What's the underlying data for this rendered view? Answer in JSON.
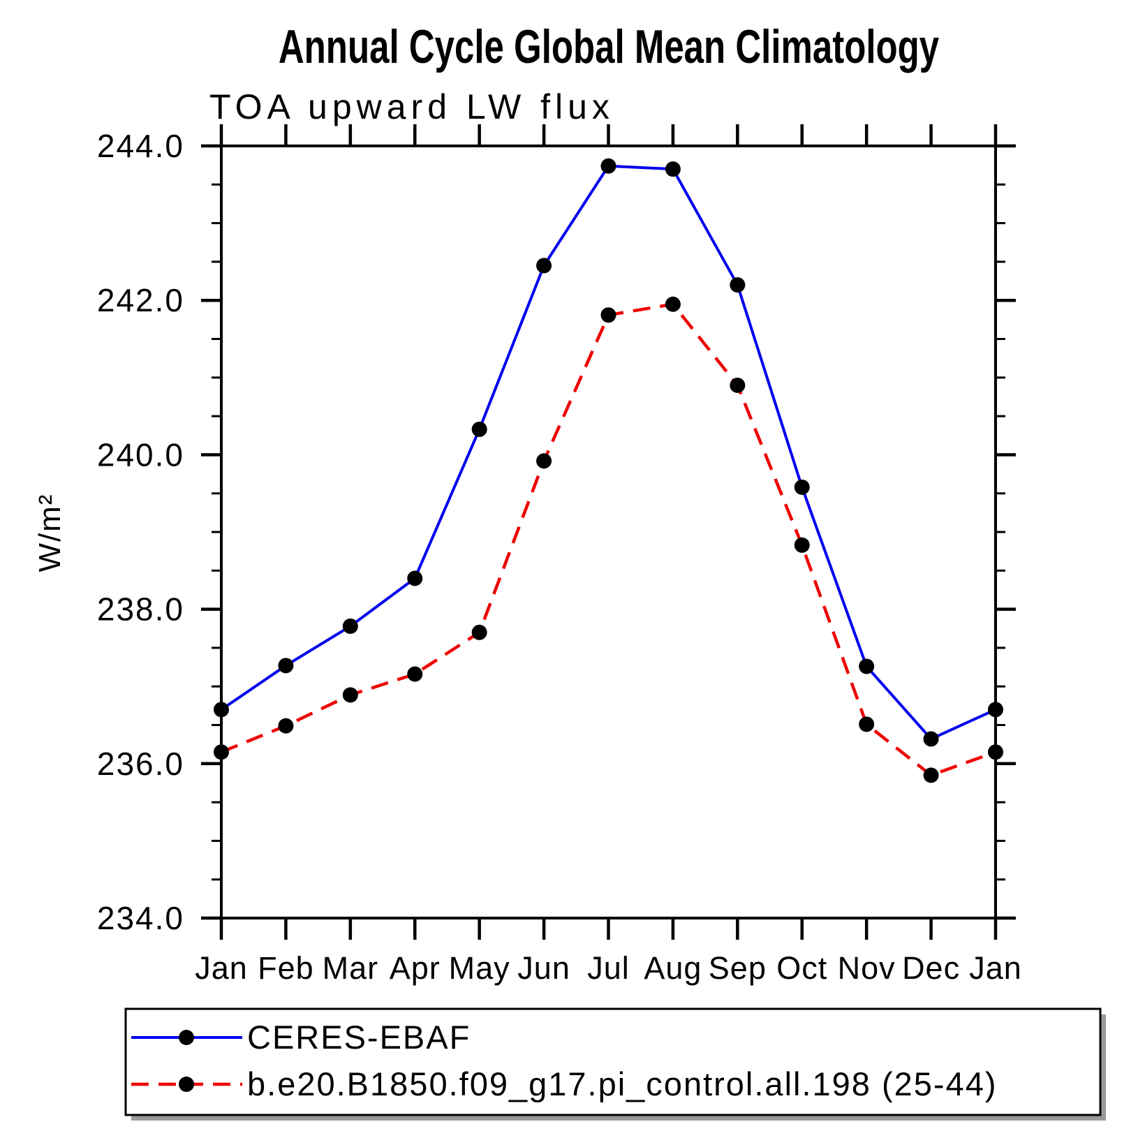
{
  "title": "Annual Cycle Global Mean Climatology",
  "subtitle": "TOA upward LW flux",
  "y_axis_label": "W/m²",
  "colors": {
    "obs_line": "#0000ee",
    "model_line": "#ee0000",
    "marker": "#000000",
    "axis": "#000000",
    "legend_shadow": "#9a9a9a"
  },
  "chart_data": {
    "type": "line",
    "title": "Annual Cycle Global Mean Climatology",
    "subtitle": "TOA upward LW flux",
    "xlabel": "",
    "ylabel": "W/m²",
    "categories": [
      "Jan",
      "Feb",
      "Mar",
      "Apr",
      "May",
      "Jun",
      "Jul",
      "Aug",
      "Sep",
      "Oct",
      "Nov",
      "Dec",
      "Jan"
    ],
    "y_axis": {
      "min": 234.0,
      "max": 244.0,
      "major_step": 2.0,
      "minor_step": 0.5,
      "tick_labels": [
        "244.0",
        "242.0",
        "240.0",
        "238.0",
        "236.0",
        "234.0"
      ]
    },
    "grid": "off",
    "legend_position": "bottom",
    "series": [
      {
        "name": "CERES-EBAF",
        "color": "#0000ee",
        "style": "solid",
        "marker": "filled-circle",
        "marker_color": "#000000",
        "values": [
          236.7,
          237.27,
          237.78,
          238.4,
          240.33,
          242.45,
          243.74,
          243.7,
          242.2,
          239.58,
          237.26,
          236.32,
          236.7
        ]
      },
      {
        "name": "b.e20.B1850.f09_g17.pi_control.all.198 (25-44)",
        "color": "#ee0000",
        "style": "dashed",
        "marker": "filled-circle",
        "marker_color": "#000000",
        "values": [
          236.15,
          236.49,
          236.89,
          237.16,
          237.7,
          239.92,
          241.81,
          241.95,
          240.9,
          238.83,
          236.51,
          235.85,
          236.15
        ]
      }
    ]
  }
}
